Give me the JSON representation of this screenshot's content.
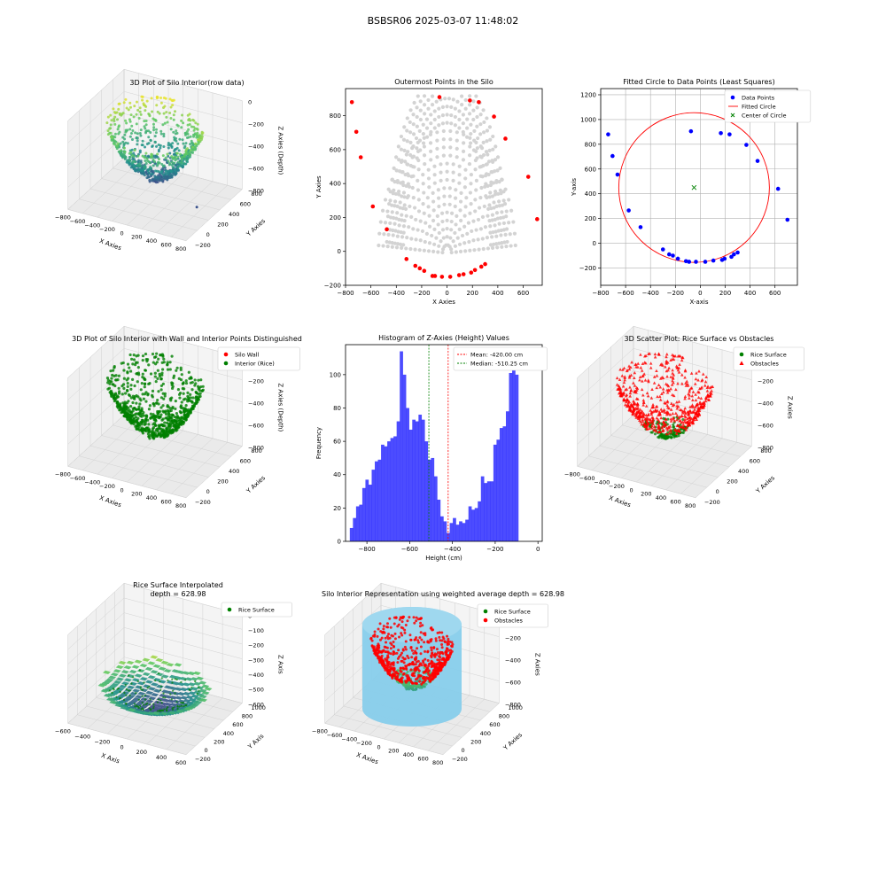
{
  "suptitle": "BSBSR06 2025-03-07 11:48:02",
  "chart_data": [
    {
      "id": "p1",
      "type": "scatter3d",
      "title": "3D Plot of Silo Interior(row data)",
      "xlabel": "X Axies",
      "ylabel": "Y Axies",
      "zlabel": "Z Axies (Depth)",
      "xticks": [
        -800,
        -600,
        -400,
        -200,
        0,
        200,
        400,
        600,
        800
      ],
      "yticks": [
        -200,
        0,
        200,
        400,
        600,
        800
      ],
      "zticks": [
        -800,
        -600,
        -400,
        -200,
        0
      ],
      "xlim": [
        -800,
        800
      ],
      "ylim": [
        -200,
        900
      ],
      "zlim": [
        -900,
        0
      ],
      "colormap": "viridis",
      "colors": [
        "#440154",
        "#3b528b",
        "#21918c",
        "#5ec962",
        "#fde725"
      ]
    },
    {
      "id": "p2",
      "type": "scatter",
      "title": "Outermost Points in the Silo",
      "xlabel": "X Axies",
      "ylabel": "Y Axies",
      "xticks": [
        -800,
        -600,
        -400,
        -200,
        0,
        200,
        400,
        600
      ],
      "yticks": [
        -200,
        0,
        200,
        400,
        600,
        800
      ],
      "xlim": [
        -800,
        750
      ],
      "ylim": [
        -200,
        960
      ],
      "series": [
        {
          "color": "#d3d3d3",
          "values": "grid"
        },
        {
          "color": "#ff0000",
          "points": [
            [
              -750,
              880
            ],
            [
              -715,
              705
            ],
            [
              -680,
              555
            ],
            [
              -585,
              265
            ],
            [
              -475,
              130
            ],
            [
              -320,
              -45
            ],
            [
              -250,
              -85
            ],
            [
              -215,
              -100
            ],
            [
              -180,
              -115
            ],
            [
              -115,
              -145
            ],
            [
              -95,
              -145
            ],
            [
              -40,
              -150
            ],
            [
              25,
              -150
            ],
            [
              95,
              -140
            ],
            [
              130,
              -135
            ],
            [
              190,
              -125
            ],
            [
              220,
              -110
            ],
            [
              270,
              -90
            ],
            [
              300,
              -75
            ],
            [
              -60,
              910
            ],
            [
              180,
              890
            ],
            [
              250,
              880
            ],
            [
              370,
              795
            ],
            [
              460,
              665
            ],
            [
              640,
              440
            ],
            [
              710,
              190
            ]
          ]
        }
      ]
    },
    {
      "id": "p3",
      "type": "scatter",
      "title": "Fitted Circle to Data Points (Least Squares)",
      "xlabel": "X-axis",
      "ylabel": "Y-axis",
      "xticks": [
        -800,
        -600,
        -400,
        -200,
        0,
        200,
        400,
        600
      ],
      "yticks": [
        -200,
        0,
        200,
        400,
        600,
        800,
        1000,
        1200
      ],
      "xlim": [
        -800,
        780
      ],
      "ylim": [
        -340,
        1250
      ],
      "grid": true,
      "legend": [
        "Data Points",
        "Fitted Circle",
        "Center of Circle"
      ],
      "legend_loc": "upper right",
      "points": [
        [
          -740,
          880
        ],
        [
          -705,
          705
        ],
        [
          -665,
          555
        ],
        [
          -575,
          265
        ],
        [
          -480,
          130
        ],
        [
          -300,
          -50
        ],
        [
          -250,
          -90
        ],
        [
          -220,
          -100
        ],
        [
          -180,
          -125
        ],
        [
          -115,
          -145
        ],
        [
          -90,
          -150
        ],
        [
          -35,
          -150
        ],
        [
          40,
          -150
        ],
        [
          105,
          -140
        ],
        [
          175,
          -135
        ],
        [
          195,
          -125
        ],
        [
          250,
          -110
        ],
        [
          270,
          -90
        ],
        [
          300,
          -75
        ],
        [
          -75,
          905
        ],
        [
          165,
          890
        ],
        [
          235,
          880
        ],
        [
          370,
          795
        ],
        [
          460,
          665
        ],
        [
          625,
          440
        ],
        [
          700,
          190
        ]
      ],
      "circle": {
        "cx": -50,
        "cy": 450,
        "r": 605
      },
      "colors": {
        "points": "#0000ff",
        "circle": "#ff0000",
        "center": "#008000"
      }
    },
    {
      "id": "p4",
      "type": "scatter3d",
      "title": "3D Plot of Silo Interior with Wall and Interior Points Distinguished",
      "xlabel": "X Axies",
      "ylabel": "Y Axies",
      "zlabel": "Z Axies (Depth)",
      "xticks": [
        -800,
        -600,
        -400,
        -200,
        0,
        200,
        400,
        600,
        800
      ],
      "yticks": [
        -200,
        0,
        200,
        400,
        600,
        800
      ],
      "zticks": [
        -800,
        -600,
        -400,
        -200,
        0
      ],
      "legend": [
        "Silo Wall",
        "Interior (Rice)"
      ],
      "colors": {
        "wall": "#ff0000",
        "interior": "#008000"
      }
    },
    {
      "id": "p5",
      "type": "bar",
      "title": "Histogram of Z-Axies (Height) Values",
      "xlabel": "Height (cm)",
      "ylabel": "Frequency",
      "xticks": [
        -800,
        -600,
        -400,
        -200,
        0
      ],
      "yticks": [
        0,
        20,
        40,
        60,
        80,
        100
      ],
      "xlim": [
        -900,
        20
      ],
      "ylim": [
        0,
        118
      ],
      "bin_start": -880,
      "bin_width": 14.6,
      "values": [
        8,
        14,
        21,
        22,
        32,
        37,
        34,
        43,
        48,
        49,
        58,
        57,
        60,
        62,
        63,
        72,
        114,
        100,
        80,
        67,
        73,
        72,
        76,
        73,
        60,
        49,
        50,
        39,
        25,
        15,
        12,
        5,
        11,
        14,
        10,
        12,
        11,
        13,
        21,
        19,
        20,
        24,
        39,
        35,
        36,
        36,
        58,
        61,
        68,
        69,
        78,
        101,
        105,
        100
      ],
      "legend": [
        "Mean: -420.00 cm",
        "Median: -510.25 cm"
      ],
      "mean": -420.0,
      "median": -510.25,
      "colors": {
        "bars": "#0000ff",
        "mean": "#ff0000",
        "median": "#008000"
      }
    },
    {
      "id": "p6",
      "type": "scatter3d",
      "title": "3D Scatter Plot: Rice Surface vs Obstacles",
      "xlabel": "X Axies",
      "ylabel": "Y Axies",
      "zlabel": "Z Axies",
      "xticks": [
        -800,
        -600,
        -400,
        -200,
        0,
        200,
        400,
        600,
        800
      ],
      "yticks": [
        -200,
        0,
        200,
        400,
        600,
        800
      ],
      "zticks": [
        -800,
        -600,
        -400,
        -200,
        0
      ],
      "legend": [
        "Rice Surface",
        "Obstacles"
      ],
      "colors": {
        "rice": "#008000",
        "obstacles": "#ff0000"
      }
    },
    {
      "id": "p7",
      "type": "surface3d",
      "title": "Rice Surface Interpolated\ndepth = 628.98",
      "xlabel": "X Axis",
      "ylabel": "Y Axis",
      "zlabel": "Z Axis",
      "xticks": [
        -600,
        -400,
        -200,
        0,
        200,
        400,
        600
      ],
      "yticks": [
        -200,
        0,
        200,
        400,
        600,
        800,
        1000
      ],
      "zticks": [
        -600,
        -500,
        -400,
        -300,
        -200,
        -100,
        0
      ],
      "legend": [
        "Rice Surface"
      ],
      "colors": {
        "rice": "#008000"
      }
    },
    {
      "id": "p8",
      "type": "scatter3d",
      "title": "Silo Interior Representation using weighted average depth = 628.98",
      "xlabel": "X Axies",
      "ylabel": "Y Axies",
      "zlabel": "Z Axies",
      "xticks": [
        -800,
        -600,
        -400,
        -200,
        0,
        200,
        400,
        600,
        800
      ],
      "yticks": [
        -200,
        0,
        200,
        400,
        600,
        800,
        1000
      ],
      "zticks": [
        -800,
        -600,
        -400,
        -200,
        0
      ],
      "legend": [
        "Rice Surface",
        "Obstacles"
      ],
      "colors": {
        "rice": "#008000",
        "obstacles": "#ff0000",
        "cylinder": "#87ceeb"
      }
    }
  ]
}
